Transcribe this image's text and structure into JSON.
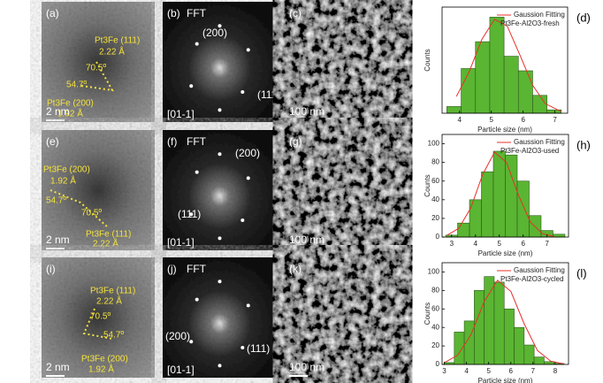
{
  "panels": [
    {
      "label": "(a)",
      "notes": [
        "Pt3Fe (111)",
        "2.22 Å",
        "70.5º",
        "54.7º",
        "Pt3Fe (200)",
        "1.92 Å"
      ],
      "scale": "2 nm"
    },
    {
      "label": "(b)",
      "title": "FFT",
      "notes": [
        "(200)",
        "(111)"
      ],
      "zone": "[01-1]"
    },
    {
      "label": "(c)",
      "scale": "100 nm"
    },
    {
      "label": "(e)",
      "notes": [
        "Pt3Fe (200)",
        "1.92 Å",
        "54.7º",
        "70.5º",
        "Pt3Fe (111)",
        "2.22 Å"
      ],
      "scale": "2 nm"
    },
    {
      "label": "(f)",
      "title": "FFT",
      "notes": [
        "(200)",
        "(111)"
      ],
      "zone": "[01-1]"
    },
    {
      "label": "(g)",
      "scale": "100 nm"
    },
    {
      "label": "(i)",
      "notes": [
        "Pt3Fe (111)",
        "2.22 Å",
        "70.5º",
        "54.7º",
        "Pt3Fe (200)",
        "1.92 Å"
      ],
      "scale": "2 nm"
    },
    {
      "label": "(j)",
      "title": "FFT",
      "notes": [
        "(200)",
        "(111)"
      ],
      "zone": "[01-1]"
    },
    {
      "label": "(k)",
      "scale": "100 nm"
    }
  ],
  "chart_data": [
    {
      "type": "histogram",
      "label": "(d)",
      "xlabel": "Particle size (nm)",
      "ylabel": "Counts",
      "sample": "Pt3Fe-Al2O3-fresh",
      "color": "#5ab532",
      "bins": [
        3.6,
        4.05,
        4.5,
        4.95,
        5.4,
        5.85,
        6.3,
        6.75,
        7.2
      ],
      "values": [
        6,
        40,
        64,
        86,
        51,
        38,
        16,
        3
      ],
      "xlim": [
        3.45,
        7.4
      ],
      "xticks": [
        4,
        5,
        6,
        7
      ],
      "ylim": [
        0,
        95
      ],
      "fit": {
        "name": "Gaussion Fitting",
        "color": "#e8302a",
        "x": [
          3.9,
          4.3,
          4.7,
          5.1,
          5.5,
          5.9,
          6.3,
          6.7,
          7.2
        ],
        "values": [
          15,
          37,
          66,
          84,
          78,
          52,
          25,
          8.5,
          1.4
        ]
      }
    },
    {
      "type": "histogram",
      "label": "(h)",
      "xlabel": "Particle size (nm)",
      "ylabel": "Counts",
      "sample": "Pt3Fe-Al2O3-used",
      "color": "#5ab532",
      "bins": [
        2.75,
        3.25,
        3.75,
        4.25,
        4.75,
        5.25,
        5.75,
        6.25,
        6.75,
        7.25,
        7.75
      ],
      "values": [
        2,
        15,
        40,
        70,
        92,
        88,
        60,
        23,
        7,
        3
      ],
      "xlim": [
        2.6,
        7.9
      ],
      "xticks": [
        3,
        4,
        5,
        6,
        7
      ],
      "ylim": [
        0,
        110
      ],
      "yticks": [
        0,
        20,
        40,
        60,
        80,
        100
      ],
      "fit": {
        "name": "Gaussion Fitting",
        "color": "#e8302a",
        "x": [
          2.8,
          3.3,
          3.8,
          4.3,
          4.8,
          5.3,
          5.8,
          6.3,
          6.8,
          7.3
        ],
        "values": [
          1.8,
          9.4,
          31,
          67,
          91,
          80,
          45,
          16,
          3.7,
          0.5
        ]
      }
    },
    {
      "type": "histogram",
      "label": "(l)",
      "xlabel": "Particle size (nm)",
      "ylabel": "Counts",
      "sample": "Pt3Fe-Al2O3-cycled",
      "color": "#5ab532",
      "bins": [
        3.0,
        3.45,
        3.9,
        4.35,
        4.8,
        5.25,
        5.7,
        6.15,
        6.6,
        7.05,
        7.5,
        7.95,
        8.4
      ],
      "values": [
        2,
        35,
        47,
        80,
        95,
        89,
        60,
        40,
        21,
        8,
        3,
        1
      ],
      "xlim": [
        2.9,
        8.6
      ],
      "xticks": [
        3,
        4,
        5,
        6,
        7,
        8
      ],
      "ylim": [
        0,
        110
      ],
      "yticks": [
        0,
        20,
        40,
        60,
        80,
        100
      ],
      "fit": {
        "name": "Gaussion Fitting",
        "color": "#e8302a",
        "x": [
          3,
          3.6,
          4.2,
          4.8,
          5.4,
          6,
          6.6,
          7.2,
          7.8,
          8.4
        ],
        "values": [
          1.9,
          9.9,
          32,
          68,
          91,
          79,
          44,
          15,
          3.5,
          0.5
        ]
      }
    }
  ]
}
